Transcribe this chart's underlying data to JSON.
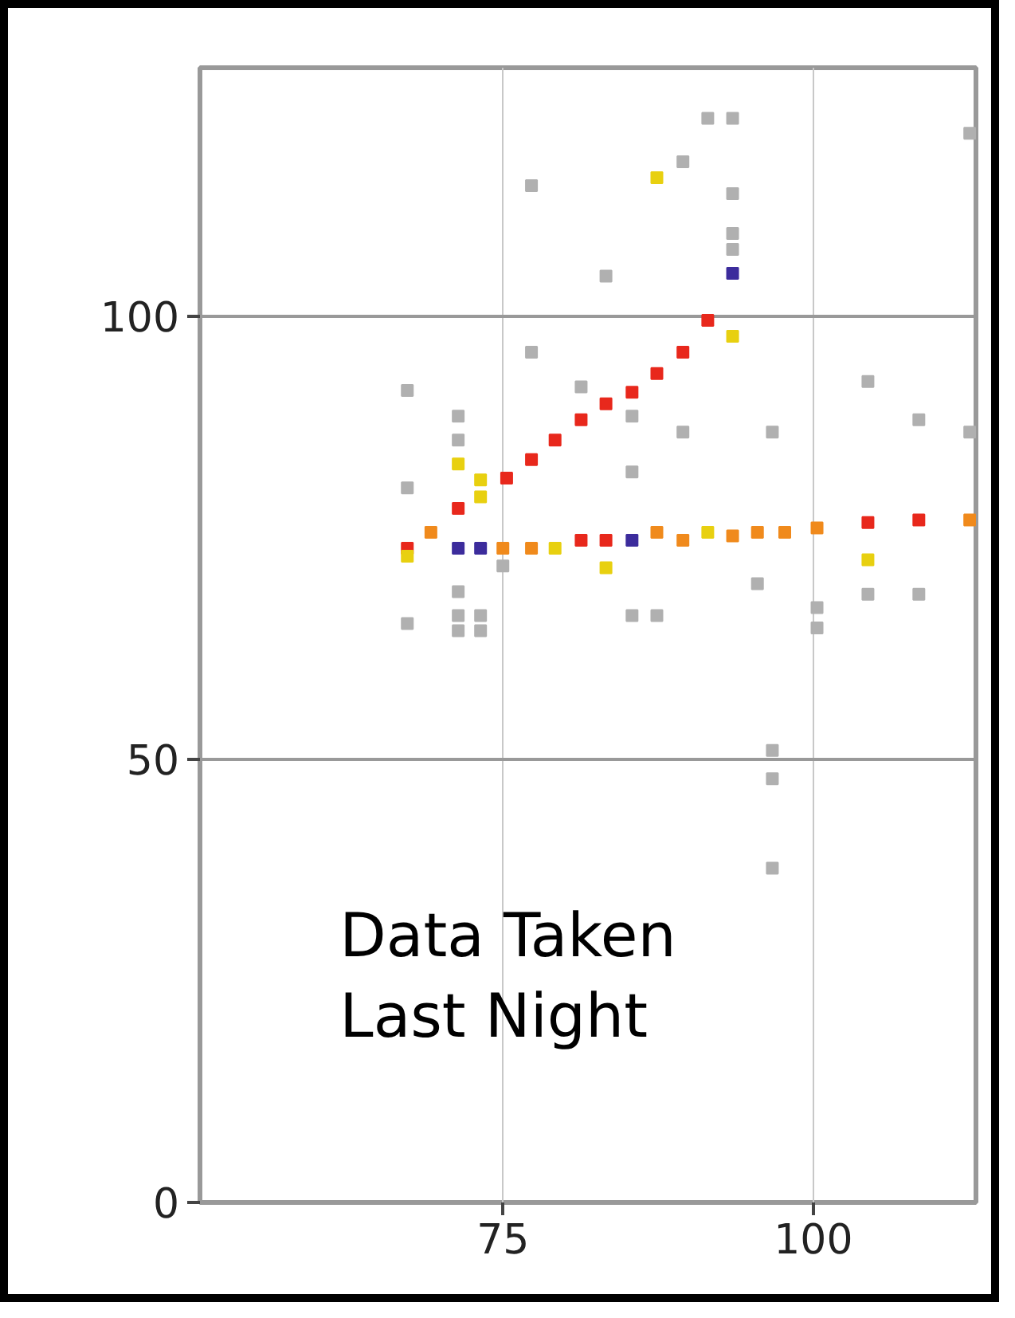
{
  "chart_data": {
    "type": "scatter",
    "marker": "square",
    "grid": true,
    "xlim": [
      50.6,
      113.1
    ],
    "ylim": [
      0,
      128
    ],
    "xticks": [
      75,
      100
    ],
    "yticks": [
      0,
      50,
      100
    ],
    "annotations": [
      "Data Taken\nLast Night"
    ],
    "series": [
      {
        "color": "#e8281c",
        "x": [
          71.4,
          75.3,
          77.3,
          79.2,
          81.3,
          83.3,
          85.4,
          87.4,
          89.5,
          91.5,
          67.3,
          81.3,
          83.3,
          108.5,
          104.4
        ],
        "values": [
          78.3,
          81.7,
          83.8,
          86.0,
          88.3,
          90.1,
          91.4,
          93.5,
          95.9,
          99.5,
          73.8,
          74.7,
          74.7,
          77.0,
          76.7
        ]
      },
      {
        "color": "#f08a1c",
        "x": [
          69.2,
          75.0,
          77.3,
          87.4,
          89.5,
          93.5,
          95.5,
          97.7,
          100.3,
          112.6
        ],
        "values": [
          75.6,
          73.8,
          73.8,
          75.6,
          74.7,
          75.2,
          75.6,
          75.6,
          76.1,
          77.0
        ]
      },
      {
        "color": "#e8d010",
        "x": [
          71.4,
          73.2,
          73.2,
          79.2,
          83.3,
          87.4,
          93.5,
          91.5,
          104.4,
          67.3
        ],
        "values": [
          83.3,
          81.5,
          79.6,
          73.8,
          71.6,
          115.6,
          97.7,
          75.6,
          72.5,
          72.9
        ]
      },
      {
        "color": "#3c2c9c",
        "x": [
          71.4,
          73.2,
          85.4,
          93.5
        ],
        "values": [
          73.8,
          73.8,
          74.7,
          104.8
        ]
      },
      {
        "color": "#b0b0b0",
        "x": [
          67.3,
          67.3,
          67.3,
          71.4,
          71.4,
          71.4,
          71.4,
          71.4,
          73.2,
          73.2,
          77.3,
          77.3,
          83.3,
          85.4,
          85.4,
          85.4,
          87.4,
          89.5,
          91.5,
          93.5,
          93.5,
          93.5,
          93.5,
          89.5,
          96.7,
          95.5,
          100.3,
          100.3,
          104.4,
          108.5,
          112.6,
          112.6,
          104.4,
          108.5,
          96.7,
          96.7,
          96.7,
          75.0,
          81.3
        ],
        "values": [
          91.6,
          80.6,
          65.3,
          88.7,
          86.0,
          68.9,
          66.2,
          64.5,
          66.2,
          64.5,
          114.7,
          95.9,
          104.5,
          88.7,
          82.4,
          66.2,
          66.2,
          117.4,
          122.3,
          122.3,
          113.8,
          107.5,
          109.3,
          86.9,
          86.9,
          69.8,
          64.8,
          67.1,
          92.6,
          88.3,
          86.9,
          120.6,
          68.6,
          68.6,
          51.0,
          47.8,
          37.7,
          71.8,
          92.0
        ]
      }
    ]
  }
}
